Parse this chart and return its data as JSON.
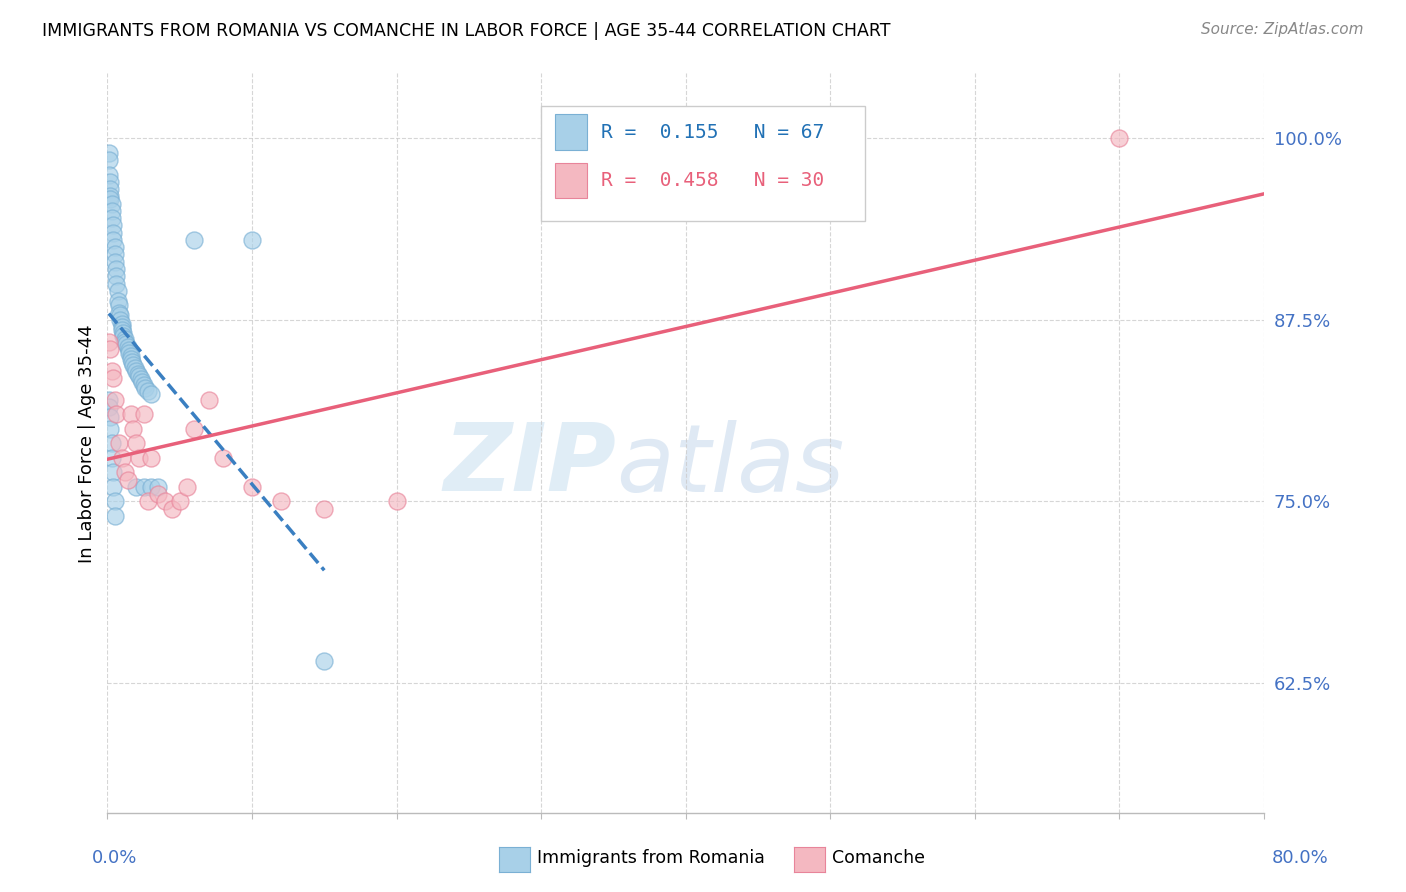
{
  "title": "IMMIGRANTS FROM ROMANIA VS COMANCHE IN LABOR FORCE | AGE 35-44 CORRELATION CHART",
  "source": "Source: ZipAtlas.com",
  "ylabel": "In Labor Force | Age 35-44",
  "yticks": [
    0.625,
    0.75,
    0.875,
    1.0
  ],
  "ytick_labels": [
    "62.5%",
    "75.0%",
    "87.5%",
    "100.0%"
  ],
  "xlim": [
    0.0,
    0.8
  ],
  "ylim": [
    0.535,
    1.045
  ],
  "romania_R": 0.155,
  "romania_N": 67,
  "comanche_R": 0.458,
  "comanche_N": 30,
  "romania_color": "#a8d0e8",
  "comanche_color": "#f4b8c1",
  "romania_edge_color": "#7ab0d4",
  "comanche_edge_color": "#e8849a",
  "romania_line_color": "#3a7fc1",
  "comanche_line_color": "#e8607a",
  "watermark_zip": "ZIP",
  "watermark_atlas": "atlas",
  "romania_x": [
    0.001,
    0.001,
    0.001,
    0.002,
    0.002,
    0.002,
    0.002,
    0.003,
    0.003,
    0.003,
    0.004,
    0.004,
    0.004,
    0.005,
    0.005,
    0.005,
    0.006,
    0.006,
    0.006,
    0.007,
    0.007,
    0.008,
    0.008,
    0.009,
    0.009,
    0.01,
    0.01,
    0.01,
    0.011,
    0.011,
    0.012,
    0.012,
    0.013,
    0.014,
    0.015,
    0.015,
    0.016,
    0.016,
    0.017,
    0.018,
    0.019,
    0.02,
    0.021,
    0.022,
    0.023,
    0.024,
    0.025,
    0.026,
    0.028,
    0.03,
    0.001,
    0.001,
    0.002,
    0.002,
    0.003,
    0.003,
    0.004,
    0.004,
    0.005,
    0.005,
    0.06,
    0.1,
    0.15,
    0.02,
    0.025,
    0.03,
    0.035
  ],
  "romania_y": [
    0.99,
    0.985,
    0.975,
    0.97,
    0.965,
    0.96,
    0.958,
    0.955,
    0.95,
    0.945,
    0.94,
    0.935,
    0.93,
    0.925,
    0.92,
    0.915,
    0.91,
    0.905,
    0.9,
    0.895,
    0.888,
    0.885,
    0.88,
    0.878,
    0.875,
    0.872,
    0.87,
    0.868,
    0.866,
    0.864,
    0.862,
    0.86,
    0.858,
    0.856,
    0.854,
    0.852,
    0.85,
    0.848,
    0.846,
    0.844,
    0.842,
    0.84,
    0.838,
    0.836,
    0.834,
    0.832,
    0.83,
    0.828,
    0.826,
    0.824,
    0.82,
    0.815,
    0.808,
    0.8,
    0.79,
    0.78,
    0.77,
    0.76,
    0.75,
    0.74,
    0.93,
    0.93,
    0.64,
    0.76,
    0.76,
    0.76,
    0.76
  ],
  "comanche_x": [
    0.001,
    0.002,
    0.003,
    0.004,
    0.005,
    0.006,
    0.008,
    0.01,
    0.012,
    0.014,
    0.016,
    0.018,
    0.02,
    0.022,
    0.025,
    0.028,
    0.03,
    0.035,
    0.04,
    0.045,
    0.05,
    0.055,
    0.06,
    0.07,
    0.08,
    0.1,
    0.12,
    0.15,
    0.2,
    0.7
  ],
  "comanche_y": [
    0.86,
    0.855,
    0.84,
    0.835,
    0.82,
    0.81,
    0.79,
    0.78,
    0.77,
    0.765,
    0.81,
    0.8,
    0.79,
    0.78,
    0.81,
    0.75,
    0.78,
    0.755,
    0.75,
    0.745,
    0.75,
    0.76,
    0.8,
    0.82,
    0.78,
    0.76,
    0.75,
    0.745,
    0.75,
    1.0
  ],
  "legend_R1": "R =  0.155",
  "legend_N1": "N = 67",
  "legend_R2": "R =  0.458",
  "legend_N2": "N = 30"
}
